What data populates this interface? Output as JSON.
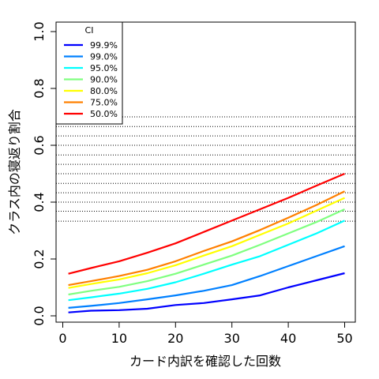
{
  "chart_data": {
    "type": "line",
    "xlabel": "カード内訳を確認した回数",
    "ylabel": "クラス内の寝返り割合",
    "xlim": [
      0,
      50
    ],
    "ylim": [
      0,
      1.0
    ],
    "x_ticks": [
      "0",
      "10",
      "20",
      "30",
      "40",
      "50"
    ],
    "y_ticks": [
      "0.0",
      "0.2",
      "0.4",
      "0.6",
      "0.8",
      "1.0"
    ],
    "reference_lines": [
      0.333,
      0.368,
      0.4,
      0.433,
      0.466,
      0.5,
      0.533,
      0.566,
      0.6,
      0.633,
      0.666,
      0.7
    ],
    "legend": {
      "title": "CI",
      "position": "top-left"
    },
    "series": [
      {
        "name": "99.9%",
        "color": "#0000ff",
        "values": [
          [
            1,
            0.012
          ],
          [
            5,
            0.018
          ],
          [
            10,
            0.02
          ],
          [
            15,
            0.025
          ],
          [
            20,
            0.038
          ],
          [
            25,
            0.045
          ],
          [
            30,
            0.058
          ],
          [
            35,
            0.072
          ],
          [
            40,
            0.1
          ],
          [
            45,
            0.125
          ],
          [
            50,
            0.15
          ]
        ]
      },
      {
        "name": "99.0%",
        "color": "#0080ff",
        "values": [
          [
            1,
            0.028
          ],
          [
            5,
            0.035
          ],
          [
            10,
            0.045
          ],
          [
            15,
            0.058
          ],
          [
            20,
            0.072
          ],
          [
            25,
            0.088
          ],
          [
            30,
            0.108
          ],
          [
            35,
            0.14
          ],
          [
            40,
            0.175
          ],
          [
            45,
            0.21
          ],
          [
            50,
            0.245
          ]
        ]
      },
      {
        "name": "95.0%",
        "color": "#00ffff",
        "values": [
          [
            1,
            0.055
          ],
          [
            5,
            0.065
          ],
          [
            10,
            0.078
          ],
          [
            15,
            0.095
          ],
          [
            20,
            0.118
          ],
          [
            25,
            0.148
          ],
          [
            30,
            0.18
          ],
          [
            35,
            0.21
          ],
          [
            40,
            0.25
          ],
          [
            45,
            0.29
          ],
          [
            50,
            0.335
          ]
        ]
      },
      {
        "name": "90.0%",
        "color": "#80ff80",
        "values": [
          [
            1,
            0.075
          ],
          [
            5,
            0.088
          ],
          [
            10,
            0.102
          ],
          [
            15,
            0.122
          ],
          [
            20,
            0.148
          ],
          [
            25,
            0.18
          ],
          [
            30,
            0.212
          ],
          [
            35,
            0.25
          ],
          [
            40,
            0.29
          ],
          [
            45,
            0.33
          ],
          [
            50,
            0.375
          ]
        ]
      },
      {
        "name": "80.0%",
        "color": "#ffff00",
        "values": [
          [
            1,
            0.098
          ],
          [
            5,
            0.112
          ],
          [
            10,
            0.128
          ],
          [
            15,
            0.15
          ],
          [
            20,
            0.178
          ],
          [
            25,
            0.212
          ],
          [
            30,
            0.245
          ],
          [
            35,
            0.285
          ],
          [
            40,
            0.325
          ],
          [
            45,
            0.37
          ],
          [
            50,
            0.415
          ]
        ]
      },
      {
        "name": "75.0%",
        "color": "#ff8000",
        "values": [
          [
            1,
            0.108
          ],
          [
            5,
            0.122
          ],
          [
            10,
            0.14
          ],
          [
            15,
            0.162
          ],
          [
            20,
            0.192
          ],
          [
            25,
            0.228
          ],
          [
            30,
            0.262
          ],
          [
            35,
            0.302
          ],
          [
            40,
            0.345
          ],
          [
            45,
            0.39
          ],
          [
            50,
            0.438
          ]
        ]
      },
      {
        "name": "50.0%",
        "color": "#ff0000",
        "values": [
          [
            1,
            0.148
          ],
          [
            5,
            0.168
          ],
          [
            10,
            0.192
          ],
          [
            15,
            0.222
          ],
          [
            20,
            0.255
          ],
          [
            25,
            0.295
          ],
          [
            30,
            0.335
          ],
          [
            35,
            0.375
          ],
          [
            40,
            0.415
          ],
          [
            45,
            0.458
          ],
          [
            50,
            0.5
          ]
        ]
      }
    ]
  }
}
